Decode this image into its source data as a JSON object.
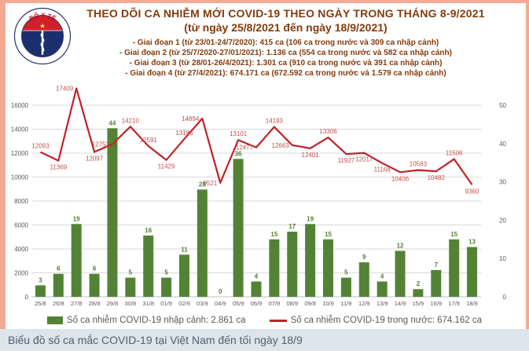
{
  "logo": {
    "top_text": "BỘ Y TẾ",
    "bottom_text": "MINISTRY OF HEALTH"
  },
  "header": {
    "title_line1": "THEO DÕI CA NHIỄM MỚI COVID-19 THEO NGÀY TRONG THÁNG 8-9/2021",
    "title_line2": "(từ ngày 25/8/2021 đến ngày 18/9/2021)",
    "bullets": [
      "- Giai đoạn 1 (từ 23/01-24/7/2020): 415 ca (106 ca trong nước và 309 ca nhập cảnh)",
      "- Giai đoạn 2 (từ 25/7/2020-27/01/2021): 1.136 ca (554 ca trong nước và 582 ca nhập cảnh)",
      "- Giai đoạn 3 (từ 28/01-26/4/2021): 1.301 ca (910 ca trong nước và 391 ca nhập cảnh)",
      "- Giai đoạn 4 (từ 27/4/2021): 674.171 ca (672.592 ca trong nước và 1.579 ca nhập cảnh)"
    ]
  },
  "chart_data": {
    "type": "bar",
    "subtype": "combo-bar-line-dual-axis",
    "title": "THEO DÕI CA NHIỄM MỚI COVID-19 THEO NGÀY TRONG THÁNG 8-9/2021 (từ ngày 25/8/2021 đến ngày 18/9/2021)",
    "categories": [
      "25/8",
      "26/8",
      "27/8",
      "28/8",
      "29/8",
      "30/8",
      "31/8",
      "01/9",
      "02/9",
      "03/9",
      "04/9",
      "05/9",
      "06/9",
      "07/9",
      "08/9",
      "09/8",
      "10/9",
      "11/9",
      "12/9",
      "13/9",
      "14/9",
      "15/9",
      "16/9",
      "17/9",
      "18/9"
    ],
    "series": [
      {
        "name": "Số ca nhiễm COVID-19 nhập cảnh",
        "type": "bar",
        "axis": "right",
        "values": [
          3,
          6,
          19,
          6,
          44,
          5,
          16,
          5,
          11,
          28,
          0,
          36,
          4,
          15,
          17,
          19,
          15,
          5,
          9,
          4,
          12,
          2,
          7,
          15,
          13
        ]
      },
      {
        "name": "Số ca nhiễm COVID-19 trong nước",
        "type": "line",
        "axis": "left",
        "values": [
          12093,
          11369,
          17409,
          12097,
          12752,
          14210,
          12591,
          11429,
          13186,
          14894,
          9521,
          13101,
          12477,
          14193,
          12663,
          12401,
          13306,
          11927,
          12017,
          11168,
          10406,
          10583,
          10482,
          11506,
          9360
        ],
        "label_side": [
          "above",
          "below",
          "left",
          "below",
          "left",
          "above",
          "above",
          "below",
          "above",
          "left",
          "left",
          "above",
          "left",
          "above",
          "left",
          "below",
          "above",
          "below",
          "below",
          "below",
          "below",
          "above",
          "below",
          "above",
          "below"
        ]
      }
    ],
    "left_axis": {
      "ticks": [
        0,
        2000,
        4000,
        6000,
        8000,
        10000,
        12000,
        14000,
        16000
      ],
      "min": 0,
      "max": 18000
    },
    "right_axis": {
      "ticks": [
        0,
        10,
        20,
        30,
        40,
        50
      ],
      "min": 0,
      "max": 56.25,
      "left_units_per_right_unit": 320
    },
    "grid": "horizontal",
    "legend_position": "bottom"
  },
  "legend": {
    "bar_label": "Số ca nhiễm COVID-19 nhập cảnh: 2.861 ca",
    "line_label": "Số ca nhiễm COVID-19 trong nước: 674.162 ca"
  },
  "caption": "Biểu đồ số ca mắc COVID-19 tại Việt Nam đến tối ngày 18/9",
  "colors": {
    "bar": "#548235",
    "bar_label": "#538135",
    "line": "#C0222A",
    "line_label": "#C0504D",
    "title": "#843C0C",
    "axis_text": "#595959",
    "grid": "#d9d9d9",
    "axis_line": "#bfbfbf",
    "border": "#F2AB92",
    "caption_bg": "#DDE4EA"
  }
}
